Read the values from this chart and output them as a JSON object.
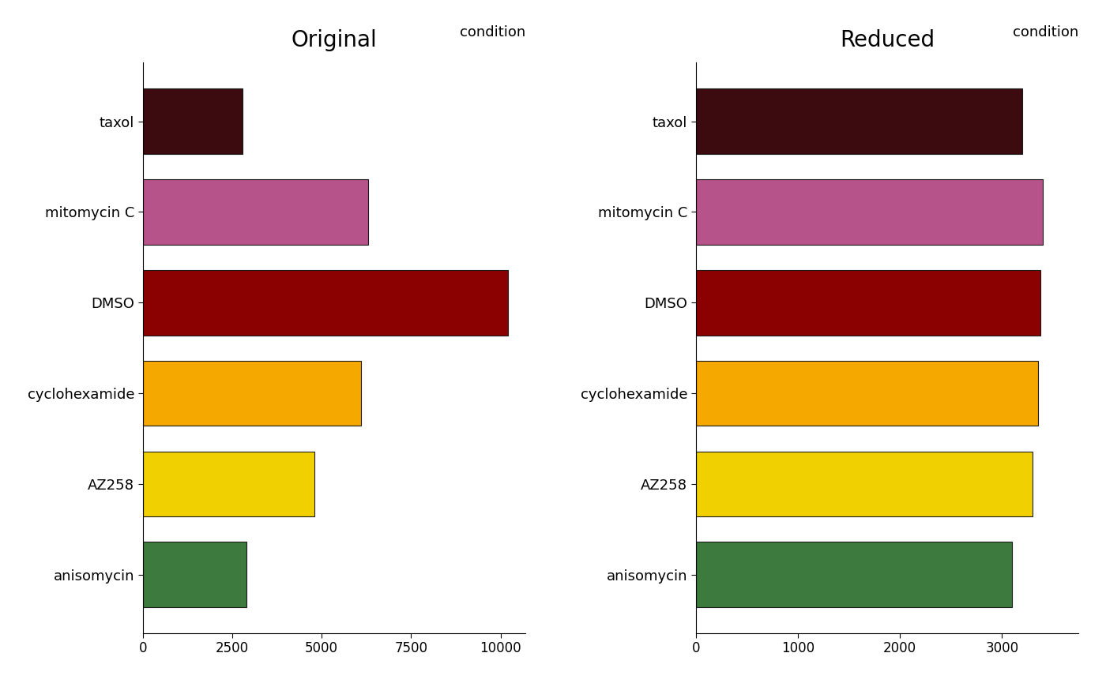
{
  "categories": [
    "taxol",
    "mitomycin C",
    "DMSO",
    "cyclohexamide",
    "AZ258",
    "anisomycin"
  ],
  "original_values": [
    2800,
    6300,
    10200,
    6100,
    4800,
    2900
  ],
  "reduced_values": [
    3200,
    3400,
    3380,
    3350,
    3300,
    3100
  ],
  "colors": [
    "#3b0b10",
    "#b5538a",
    "#8b0000",
    "#f5a800",
    "#f0d000",
    "#3d7a3d"
  ],
  "title_original": "Original",
  "title_reduced": "Reduced",
  "condition_label": "condition",
  "xlim_original": [
    0,
    10700
  ],
  "xlim_reduced": [
    0,
    3750
  ],
  "xticks_original": [
    0,
    2500,
    5000,
    7500,
    10000
  ],
  "xticks_reduced": [
    0,
    1000,
    2000,
    3000
  ],
  "background_color": "#ffffff",
  "bar_edgecolor": "#1a1a1a",
  "title_fontsize": 20,
  "label_fontsize": 13,
  "tick_fontsize": 12,
  "condition_fontsize": 13,
  "bar_height": 0.72
}
